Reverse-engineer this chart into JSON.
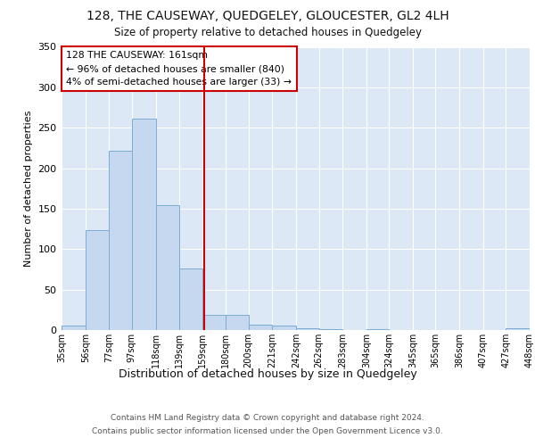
{
  "title1": "128, THE CAUSEWAY, QUEDGELEY, GLOUCESTER, GL2 4LH",
  "title2": "Size of property relative to detached houses in Quedgeley",
  "xlabel": "Distribution of detached houses by size in Quedgeley",
  "ylabel": "Number of detached properties",
  "bin_edges": [
    35,
    56,
    77,
    97,
    118,
    139,
    159,
    180,
    200,
    221,
    242,
    262,
    283,
    304,
    324,
    345,
    365,
    386,
    407,
    427,
    448
  ],
  "bar_heights": [
    5,
    123,
    222,
    261,
    154,
    76,
    19,
    19,
    7,
    5,
    2,
    1,
    0,
    1,
    0,
    0,
    0,
    0,
    0,
    2
  ],
  "bar_color": "#c5d8f0",
  "bar_edge_color": "#7aadd4",
  "property_size": 161,
  "vline_color": "#cc0000",
  "annotation_line1": "128 THE CAUSEWAY: 161sqm",
  "annotation_line2": "← 96% of detached houses are smaller (840)",
  "annotation_line3": "4% of semi-detached houses are larger (33) →",
  "annotation_box_facecolor": "#ffffff",
  "annotation_box_edgecolor": "#cc0000",
  "fig_bg_color": "#ffffff",
  "plot_bg_color": "#dce8f5",
  "grid_color": "#ffffff",
  "ylim": [
    0,
    350
  ],
  "yticks": [
    0,
    50,
    100,
    150,
    200,
    250,
    300,
    350
  ],
  "footer1": "Contains HM Land Registry data © Crown copyright and database right 2024.",
  "footer2": "Contains public sector information licensed under the Open Government Licence v3.0."
}
